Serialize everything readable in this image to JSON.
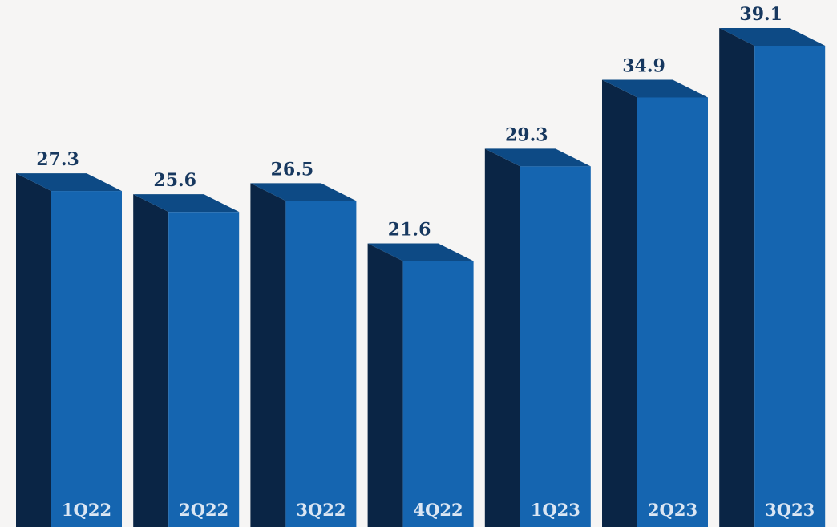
{
  "chart_data": {
    "type": "bar",
    "categories": [
      "1Q22",
      "2Q22",
      "3Q22",
      "4Q22",
      "1Q23",
      "2Q23",
      "3Q23"
    ],
    "values": [
      27.3,
      25.6,
      26.5,
      21.6,
      29.3,
      34.9,
      39.1
    ],
    "title": "",
    "xlabel": "",
    "ylabel": "",
    "ylim": [
      0,
      39.1
    ],
    "grid": false,
    "legend": "none",
    "colors": {
      "bar_front": "#1565b0",
      "bar_side": "#0a2545",
      "bar_top": "#0d4a85",
      "value_label": "#17385f",
      "category_label": "#dbe6f3",
      "background": "#f6f5f4"
    }
  }
}
